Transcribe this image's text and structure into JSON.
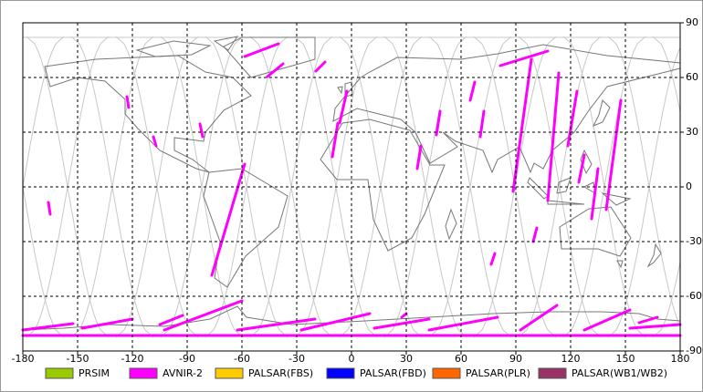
{
  "map": {
    "xlim": [
      -180,
      180
    ],
    "ylim": [
      -90,
      90
    ],
    "xticks": [
      -180,
      -150,
      -120,
      -90,
      -60,
      -30,
      0,
      30,
      60,
      90,
      120,
      150,
      180
    ],
    "yticks": [
      90,
      60,
      30,
      0,
      -30,
      -60,
      -90
    ],
    "legend": [
      {
        "name": "PRSIM",
        "color": "#99cc00"
      },
      {
        "name": "AVNIR-2",
        "color": "#ff00ff"
      },
      {
        "name": "PALSAR(FBS)",
        "color": "#ffcc00"
      },
      {
        "name": "PALSAR(FBD)",
        "color": "#0000ff"
      },
      {
        "name": "PALSAR(PLR)",
        "color": "#ff6600"
      },
      {
        "name": "PALSAR(WB1/WB2)",
        "color": "#993366"
      }
    ]
  }
}
